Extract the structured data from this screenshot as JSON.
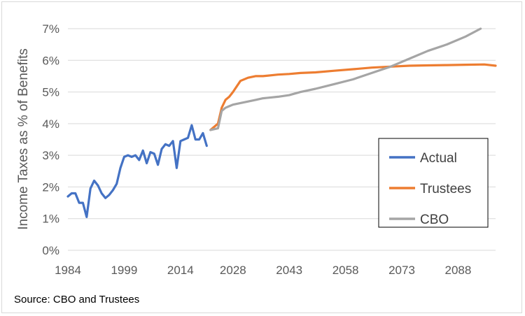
{
  "source_note": "Source: CBO and Trustees",
  "chart_data": {
    "type": "line",
    "title": "",
    "xlabel": "",
    "ylabel": "Income Taxes as % of Benefits",
    "ylim": [
      0,
      7
    ],
    "xlim": [
      1984,
      2098
    ],
    "y_ticks": [
      "0%",
      "1%",
      "2%",
      "3%",
      "4%",
      "5%",
      "6%",
      "7%"
    ],
    "x_ticks": [
      "1984",
      "1999",
      "2014",
      "2028",
      "2043",
      "2058",
      "2073",
      "2088"
    ],
    "grid": true,
    "legend_position": "right",
    "series": [
      {
        "name": "Actual",
        "color": "#4472c4",
        "x": [
          1984,
          1985,
          1986,
          1987,
          1988,
          1989,
          1990,
          1991,
          1992,
          1993,
          1994,
          1995,
          1996,
          1997,
          1998,
          1999,
          2000,
          2001,
          2002,
          2003,
          2004,
          2005,
          2006,
          2007,
          2008,
          2009,
          2010,
          2011,
          2012,
          2013,
          2014,
          2015,
          2016,
          2017,
          2018,
          2019,
          2020,
          2021
        ],
        "y": [
          1.7,
          1.8,
          1.8,
          1.5,
          1.5,
          1.05,
          1.95,
          2.2,
          2.05,
          1.8,
          1.65,
          1.75,
          1.9,
          2.1,
          2.6,
          2.95,
          3.0,
          2.95,
          3.0,
          2.85,
          3.15,
          2.75,
          3.1,
          3.05,
          2.7,
          3.2,
          3.35,
          3.3,
          3.45,
          2.6,
          3.45,
          3.5,
          3.55,
          3.95,
          3.5,
          3.5,
          3.7,
          3.3
        ]
      },
      {
        "name": "Trustees",
        "color": "#ed7d31",
        "x": [
          2022,
          2024,
          2025,
          2026,
          2027,
          2028,
          2030,
          2032,
          2034,
          2036,
          2040,
          2043,
          2046,
          2050,
          2055,
          2060,
          2065,
          2070,
          2075,
          2080,
          2085,
          2090,
          2095,
          2098
        ],
        "y": [
          3.8,
          4.0,
          4.5,
          4.75,
          4.85,
          5.0,
          5.35,
          5.45,
          5.5,
          5.5,
          5.55,
          5.57,
          5.6,
          5.62,
          5.67,
          5.72,
          5.77,
          5.8,
          5.83,
          5.84,
          5.85,
          5.86,
          5.87,
          5.83
        ]
      },
      {
        "name": "CBO",
        "color": "#a5a5a5",
        "x": [
          2022,
          2024,
          2025,
          2026,
          2027,
          2028,
          2030,
          2032,
          2034,
          2036,
          2040,
          2043,
          2046,
          2050,
          2055,
          2060,
          2065,
          2070,
          2075,
          2080,
          2085,
          2090,
          2094
        ],
        "y": [
          3.8,
          3.85,
          4.4,
          4.5,
          4.55,
          4.6,
          4.65,
          4.7,
          4.75,
          4.8,
          4.85,
          4.9,
          5.0,
          5.1,
          5.25,
          5.4,
          5.6,
          5.8,
          6.05,
          6.3,
          6.5,
          6.75,
          7.0
        ]
      }
    ]
  }
}
